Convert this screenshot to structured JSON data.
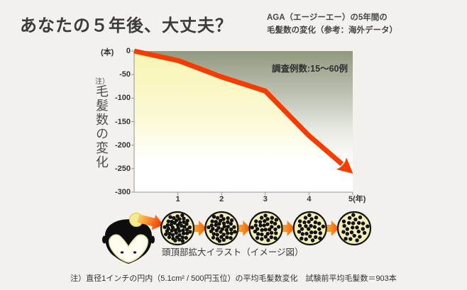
{
  "header": {
    "title": "あなたの５年後、大丈夫？",
    "subtitle_lines": [
      "AGA（エージーエー）の5年間の",
      "毛髪数の変化（参考：海外データ）"
    ]
  },
  "chart_data": {
    "type": "line",
    "title": "AGA（エージーエー）の5年間の毛髪数の変化（参考：海外データ）",
    "x": [
      0,
      1,
      2,
      3,
      4,
      5
    ],
    "values": [
      0,
      -20,
      -55,
      -85,
      -180,
      -260
    ],
    "series_name": "毛髪数の変化",
    "xlabel": "年",
    "ylabel": "毛髪数の変化",
    "ylabel_note": "注）",
    "ylabel_unit": "(本)",
    "xlim": [
      0,
      5
    ],
    "ylim": [
      -300,
      0
    ],
    "y_tick_values": [
      0,
      -50,
      -100,
      -150,
      -200,
      -250,
      -300
    ],
    "y_tick_labels": [
      "0",
      "-50",
      "-100",
      "-150",
      "-200",
      "-250",
      "-300"
    ],
    "x_tick_values": [
      1,
      2,
      3,
      4,
      5
    ],
    "x_tick_labels": [
      "1",
      "2",
      "3",
      "4",
      "5(年)"
    ],
    "annotation": "調査例数:15～60例",
    "grid": false,
    "legend": "none",
    "line_color": "#f83c00",
    "axis_color": "#949494",
    "bg_gradient": [
      {
        "o": 0,
        "c": "#929981"
      },
      {
        "o": 0.3,
        "c": "#bcc1b1"
      },
      {
        "o": 0.55,
        "c": "#e6e8e1"
      },
      {
        "o": 0.72,
        "c": "#f8f7f4"
      },
      {
        "o": 0.85,
        "c": "#ffffff"
      }
    ],
    "area_gradient": [
      {
        "o": 0,
        "c": "#f8f4b2"
      },
      {
        "o": 0.5,
        "c": "#fbf9d8"
      },
      {
        "o": 0.78,
        "c": "#ffffff"
      }
    ]
  },
  "illustration": {
    "caption": "頭頂部拡大イラスト（イメージ図）",
    "head": "balding-head-top-view",
    "dot_counts": [
      46,
      40,
      34,
      29,
      25
    ],
    "circle_fill": "#f4efb5",
    "circle_outline": "#141414",
    "dot_color": "#101010",
    "arrow_color_start": "#ffd95f",
    "arrow_color_end": "#f83e00",
    "crown_color": "#f4ea92"
  },
  "footer": {
    "note": "注）直径1インチの円内（5.1cm² / 500円玉位）の平均毛髪数変化　試験前平均毛髪数＝903本"
  }
}
